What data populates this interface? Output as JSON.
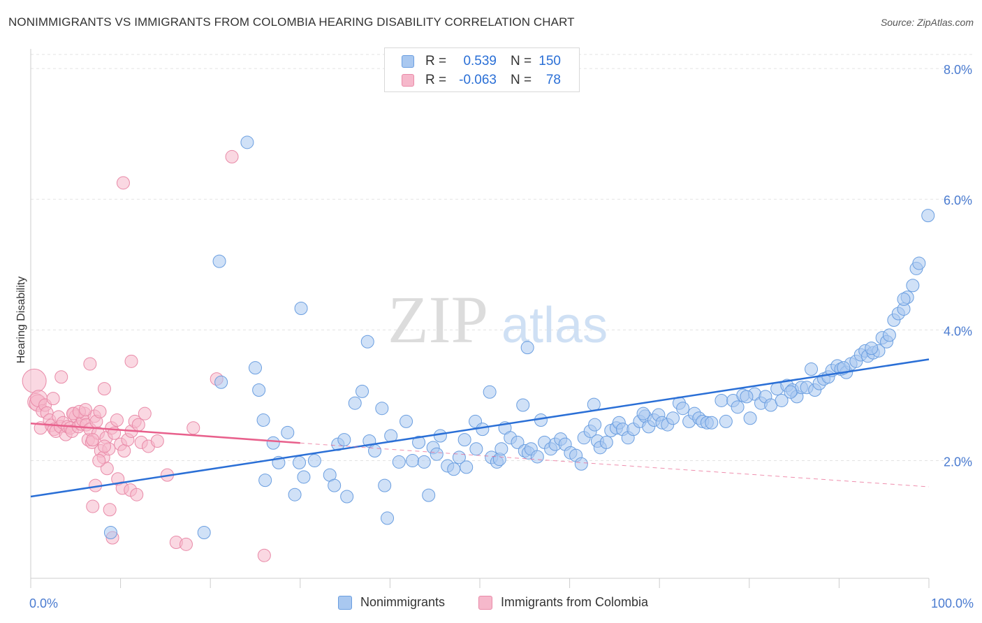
{
  "title": "NONIMMIGRANTS VS IMMIGRANTS FROM COLOMBIA HEARING DISABILITY CORRELATION CHART",
  "source": "Source: ZipAtlas.com",
  "watermark": {
    "zip": "ZIP",
    "atlas": "atlas"
  },
  "legend_stats": [
    {
      "r_label": "R =",
      "r_value": "0.539",
      "n_label": "N =",
      "n_value": "150",
      "color": "#a9c8f0"
    },
    {
      "r_label": "R =",
      "r_value": "-0.063",
      "n_label": "N =",
      "n_value": "78",
      "color": "#f6b8cb"
    }
  ],
  "colors": {
    "blue_fill": "#a9c8f0",
    "blue_stroke": "#6a9ee0",
    "blue_line": "#2a6fd6",
    "pink_fill": "#f6b8cb",
    "pink_stroke": "#e98aa8",
    "pink_line": "#e8608c",
    "grid": "#e3e3e3",
    "tick_text": "#4a7bd0"
  },
  "chart_data": {
    "type": "scatter",
    "ylabel": "Hearing Disability",
    "xlim": [
      0,
      100
    ],
    "ylim": [
      0.2,
      8.3
    ],
    "y_ticks": [
      {
        "value": 2.0,
        "label": "2.0%"
      },
      {
        "value": 4.0,
        "label": "4.0%"
      },
      {
        "value": 6.0,
        "label": "6.0%"
      },
      {
        "value": 8.0,
        "label": "8.0%"
      }
    ],
    "x_tick_labels": [
      {
        "value": 0,
        "label": "0.0%"
      },
      {
        "value": 100,
        "label": "100.0%"
      }
    ],
    "x_minor_ticks": [
      0,
      10,
      20,
      30,
      40,
      50,
      60,
      70,
      80,
      90,
      100
    ],
    "grid": true,
    "legend_position": "bottom-center",
    "series": [
      {
        "name": "Nonimmigrants",
        "color": "#a9c8f0",
        "trend": {
          "x": [
            0,
            100
          ],
          "y": [
            1.45,
            3.55
          ]
        },
        "points": [
          [
            8.9,
            0.9
          ],
          [
            19.3,
            0.9
          ],
          [
            21,
            5.05
          ],
          [
            21.2,
            3.2
          ],
          [
            24.1,
            6.87
          ],
          [
            25,
            3.42
          ],
          [
            25.4,
            3.08
          ],
          [
            25.9,
            2.62
          ],
          [
            26.1,
            1.7
          ],
          [
            27,
            2.27
          ],
          [
            27.6,
            1.97
          ],
          [
            28.6,
            2.43
          ],
          [
            29.4,
            1.48
          ],
          [
            29.9,
            1.97
          ],
          [
            30.1,
            4.33
          ],
          [
            30.4,
            1.75
          ],
          [
            31.6,
            2.0
          ],
          [
            33.3,
            1.78
          ],
          [
            33.8,
            1.62
          ],
          [
            34.2,
            2.25
          ],
          [
            34.9,
            2.32
          ],
          [
            35.2,
            1.45
          ],
          [
            36.1,
            2.88
          ],
          [
            36.9,
            3.06
          ],
          [
            37.5,
            3.82
          ],
          [
            37.7,
            2.3
          ],
          [
            38.3,
            2.15
          ],
          [
            39.1,
            2.8
          ],
          [
            39.4,
            1.62
          ],
          [
            39.7,
            1.12
          ],
          [
            40.1,
            2.38
          ],
          [
            41,
            1.98
          ],
          [
            41.8,
            2.6
          ],
          [
            42.5,
            2.0
          ],
          [
            43.2,
            2.28
          ],
          [
            43.8,
            1.98
          ],
          [
            44.3,
            1.47
          ],
          [
            44.8,
            2.2
          ],
          [
            45.2,
            2.1
          ],
          [
            45.6,
            2.38
          ],
          [
            46.4,
            1.92
          ],
          [
            47.1,
            1.87
          ],
          [
            47.7,
            2.05
          ],
          [
            48.3,
            2.32
          ],
          [
            48.5,
            1.9
          ],
          [
            49.5,
            2.6
          ],
          [
            49.6,
            2.18
          ],
          [
            50.3,
            2.48
          ],
          [
            51.1,
            3.05
          ],
          [
            51.3,
            2.05
          ],
          [
            51.9,
            1.98
          ],
          [
            52.2,
            2.02
          ],
          [
            52.4,
            2.18
          ],
          [
            52.8,
            2.5
          ],
          [
            53.4,
            2.35
          ],
          [
            54.2,
            2.28
          ],
          [
            54.8,
            2.85
          ],
          [
            55,
            2.15
          ],
          [
            55.4,
            2.12
          ],
          [
            55.7,
            2.18
          ],
          [
            56.4,
            2.06
          ],
          [
            56.8,
            2.62
          ],
          [
            57.2,
            2.28
          ],
          [
            57.9,
            2.18
          ],
          [
            58.4,
            2.25
          ],
          [
            59,
            2.33
          ],
          [
            59.5,
            2.25
          ],
          [
            60.1,
            2.12
          ],
          [
            60.7,
            2.08
          ],
          [
            61.3,
            1.95
          ],
          [
            61.6,
            2.35
          ],
          [
            62.3,
            2.45
          ],
          [
            62.8,
            2.55
          ],
          [
            63.1,
            2.3
          ],
          [
            63.4,
            2.2
          ],
          [
            64.1,
            2.28
          ],
          [
            64.6,
            2.46
          ],
          [
            65.2,
            2.5
          ],
          [
            65.5,
            2.58
          ],
          [
            65.9,
            2.48
          ],
          [
            66.5,
            2.35
          ],
          [
            67.1,
            2.48
          ],
          [
            67.8,
            2.6
          ],
          [
            68.4,
            2.68
          ],
          [
            68.8,
            2.52
          ],
          [
            69.4,
            2.62
          ],
          [
            69.9,
            2.7
          ],
          [
            70.3,
            2.58
          ],
          [
            70.9,
            2.55
          ],
          [
            71.5,
            2.65
          ],
          [
            72.2,
            2.88
          ],
          [
            72.6,
            2.8
          ],
          [
            73.3,
            2.6
          ],
          [
            73.9,
            2.72
          ],
          [
            74.4,
            2.65
          ],
          [
            74.8,
            2.6
          ],
          [
            75.3,
            2.58
          ],
          [
            75.8,
            2.58
          ],
          [
            76.9,
            2.92
          ],
          [
            77.4,
            2.6
          ],
          [
            78.2,
            2.92
          ],
          [
            78.7,
            2.82
          ],
          [
            79.3,
            3.0
          ],
          [
            80.1,
            2.65
          ],
          [
            80.6,
            3.02
          ],
          [
            81.3,
            2.88
          ],
          [
            81.8,
            2.98
          ],
          [
            82.4,
            2.85
          ],
          [
            83.1,
            3.1
          ],
          [
            83.6,
            2.92
          ],
          [
            84.2,
            3.15
          ],
          [
            84.8,
            3.08
          ],
          [
            85.3,
            2.98
          ],
          [
            85.8,
            3.12
          ],
          [
            86.4,
            3.12
          ],
          [
            86.9,
            3.4
          ],
          [
            87.3,
            3.08
          ],
          [
            87.8,
            3.18
          ],
          [
            88.3,
            3.25
          ],
          [
            88.8,
            3.28
          ],
          [
            89.2,
            3.38
          ],
          [
            89.8,
            3.45
          ],
          [
            90.2,
            3.4
          ],
          [
            90.8,
            3.35
          ],
          [
            91.3,
            3.48
          ],
          [
            91.9,
            3.52
          ],
          [
            92.4,
            3.62
          ],
          [
            92.9,
            3.68
          ],
          [
            93.2,
            3.6
          ],
          [
            93.8,
            3.65
          ],
          [
            94.4,
            3.68
          ],
          [
            94.8,
            3.88
          ],
          [
            95.3,
            3.82
          ],
          [
            95.6,
            3.92
          ],
          [
            96.1,
            4.15
          ],
          [
            96.6,
            4.25
          ],
          [
            97.2,
            4.32
          ],
          [
            97.6,
            4.5
          ],
          [
            98.2,
            4.68
          ],
          [
            98.6,
            4.94
          ],
          [
            98.9,
            5.02
          ],
          [
            99.9,
            5.75
          ],
          [
            55.3,
            3.73
          ],
          [
            62.7,
            2.86
          ],
          [
            68.2,
            2.72
          ],
          [
            79.7,
            2.98
          ],
          [
            84.6,
            3.05
          ],
          [
            90.5,
            3.42
          ],
          [
            93.6,
            3.72
          ],
          [
            97.2,
            4.47
          ]
        ]
      },
      {
        "name": "Immigrants from Colombia",
        "color": "#f6b8cb",
        "trend": {
          "x": [
            0,
            30
          ],
          "y": [
            2.57,
            2.27
          ]
        },
        "trend_dashed": {
          "x": [
            30,
            100
          ],
          "y": [
            2.27,
            1.6
          ]
        },
        "points": [
          [
            0.4,
            3.22
          ],
          [
            0.6,
            2.9
          ],
          [
            0.8,
            2.88
          ],
          [
            0.9,
            2.95
          ],
          [
            1.1,
            2.5
          ],
          [
            1.3,
            2.76
          ],
          [
            1.6,
            2.85
          ],
          [
            1.8,
            2.73
          ],
          [
            2.1,
            2.62
          ],
          [
            2.3,
            2.54
          ],
          [
            2.5,
            2.95
          ],
          [
            2.6,
            2.48
          ],
          [
            2.8,
            2.45
          ],
          [
            3.1,
            2.67
          ],
          [
            3.3,
            2.52
          ],
          [
            3.6,
            2.58
          ],
          [
            3.9,
            2.4
          ],
          [
            4.1,
            2.52
          ],
          [
            4.4,
            2.5
          ],
          [
            4.6,
            2.45
          ],
          [
            4.8,
            2.72
          ],
          [
            5,
            2.68
          ],
          [
            5.3,
            2.52
          ],
          [
            5.6,
            2.56
          ],
          [
            5.8,
            2.62
          ],
          [
            6,
            2.72
          ],
          [
            6.2,
            2.55
          ],
          [
            6.4,
            2.32
          ],
          [
            6.6,
            2.48
          ],
          [
            6.8,
            2.28
          ],
          [
            7.1,
            2.68
          ],
          [
            7.3,
            2.6
          ],
          [
            7.5,
            2.42
          ],
          [
            7.8,
            2.15
          ],
          [
            8.1,
            2.05
          ],
          [
            8.4,
            2.35
          ],
          [
            8.7,
            2.18
          ],
          [
            9,
            2.5
          ],
          [
            9.3,
            2.42
          ],
          [
            9.6,
            2.62
          ],
          [
            10,
            2.25
          ],
          [
            10.4,
            2.15
          ],
          [
            10.8,
            2.32
          ],
          [
            11.2,
            2.45
          ],
          [
            11.6,
            2.6
          ],
          [
            12,
            2.55
          ],
          [
            12.3,
            2.28
          ],
          [
            3.4,
            3.28
          ],
          [
            4.7,
            2.72
          ],
          [
            5.4,
            2.75
          ],
          [
            6.1,
            2.78
          ],
          [
            6.6,
            3.48
          ],
          [
            6.9,
            2.32
          ],
          [
            7.7,
            2.75
          ],
          [
            8.2,
            2.22
          ],
          [
            8.5,
            1.88
          ],
          [
            9.7,
            1.72
          ],
          [
            10.2,
            1.58
          ],
          [
            11.1,
            1.55
          ],
          [
            11.8,
            1.48
          ],
          [
            12.7,
            2.72
          ],
          [
            13.1,
            2.22
          ],
          [
            14.1,
            2.3
          ],
          [
            15.2,
            1.78
          ],
          [
            16.2,
            0.75
          ],
          [
            17.3,
            0.72
          ],
          [
            18.1,
            2.5
          ],
          [
            20.7,
            3.25
          ],
          [
            22.4,
            6.65
          ],
          [
            26,
            0.55
          ],
          [
            10.3,
            6.25
          ],
          [
            11.2,
            3.52
          ],
          [
            8.2,
            3.1
          ],
          [
            7.6,
            2.0
          ],
          [
            6.9,
            1.3
          ],
          [
            7.2,
            1.62
          ],
          [
            9.1,
            0.82
          ],
          [
            8.8,
            1.25
          ]
        ]
      }
    ]
  }
}
